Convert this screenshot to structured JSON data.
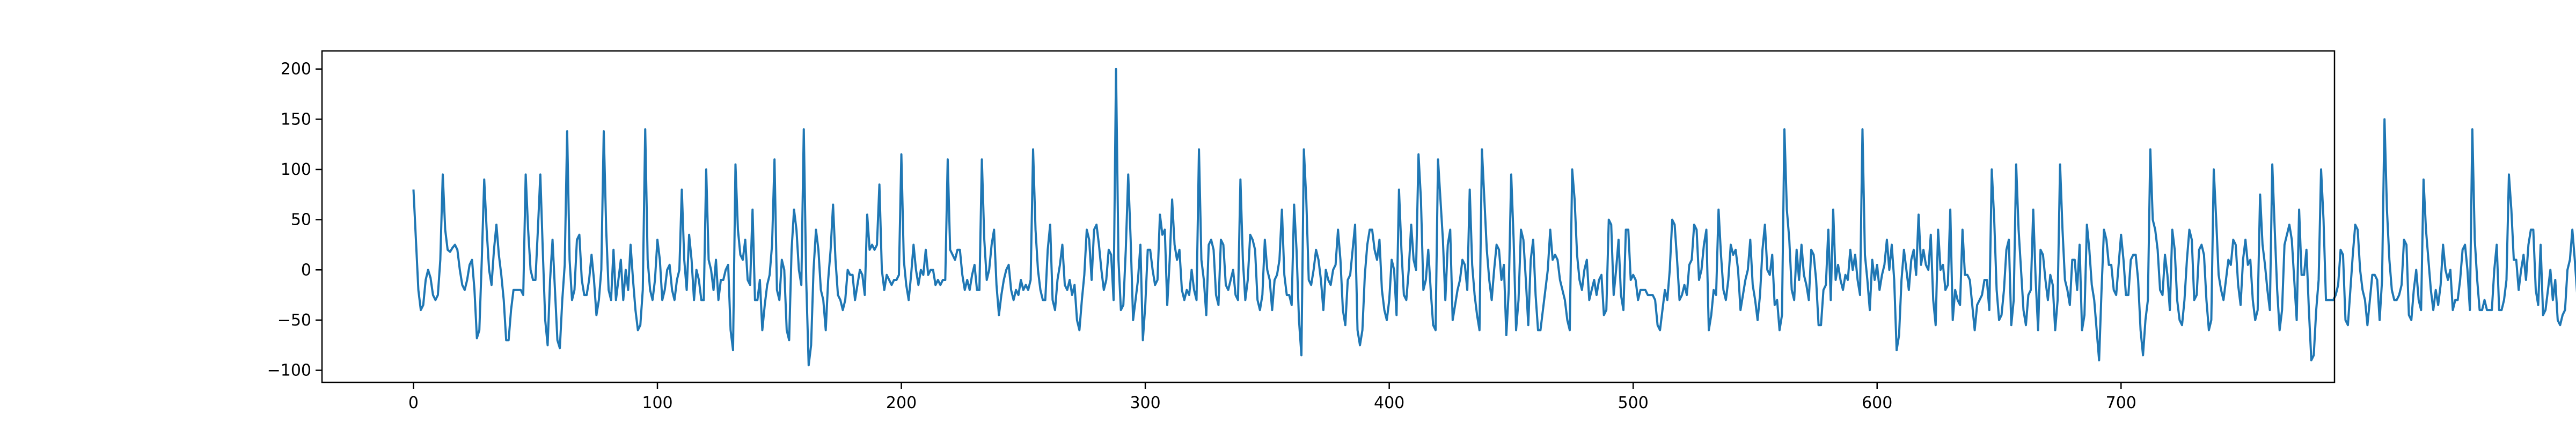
{
  "chart_data": {
    "type": "line",
    "title": "",
    "xlabel": "",
    "ylabel": "",
    "xlim": [
      -37.5,
      787.5
    ],
    "ylim": [
      -112,
      218
    ],
    "x_ticks": [
      0,
      100,
      200,
      300,
      400,
      500,
      600,
      700
    ],
    "x_tick_labels": [
      "0",
      "100",
      "200",
      "300",
      "400",
      "500",
      "600",
      "700"
    ],
    "y_ticks": [
      -100,
      -50,
      0,
      50,
      100,
      150,
      200
    ],
    "y_tick_labels": [
      "−100",
      "−50",
      "0",
      "50",
      "100",
      "150",
      "200"
    ],
    "grid": false,
    "legend": "none",
    "line_color": "#1f77b4",
    "series": [
      {
        "x_start": 0,
        "x_step": 1,
        "values": [
          80,
          30,
          -20,
          -40,
          -35,
          -10,
          0,
          -8,
          -25,
          -30,
          -25,
          10,
          95,
          40,
          20,
          18,
          22,
          25,
          20,
          0,
          -15,
          -20,
          -10,
          5,
          10,
          -20,
          -68,
          -60,
          10,
          90,
          40,
          0,
          -15,
          20,
          45,
          15,
          -5,
          -30,
          -70,
          -70,
          -40,
          -20,
          -20,
          -20,
          -20,
          -25,
          95,
          40,
          0,
          -10,
          -10,
          40,
          95,
          20,
          -50,
          -75,
          -10,
          30,
          -20,
          -70,
          -78,
          -30,
          5,
          138,
          10,
          -30,
          -20,
          30,
          35,
          -10,
          -25,
          -25,
          -10,
          15,
          -10,
          -45,
          -30,
          0,
          138,
          40,
          -20,
          -30,
          20,
          -30,
          -10,
          10,
          -30,
          0,
          -20,
          25,
          -10,
          -40,
          -60,
          -55,
          -20,
          140,
          10,
          -20,
          -30,
          -10,
          30,
          10,
          -30,
          -20,
          0,
          5,
          -20,
          -30,
          -10,
          0,
          80,
          10,
          -20,
          35,
          10,
          -30,
          0,
          -10,
          -30,
          -30,
          100,
          10,
          0,
          -20,
          10,
          -30,
          -10,
          -10,
          0,
          5,
          -60,
          -80,
          105,
          40,
          15,
          10,
          30,
          -10,
          -15,
          60,
          -30,
          -30,
          -10,
          -60,
          -35,
          -15,
          -5,
          25,
          110,
          -20,
          -30,
          10,
          0,
          -60,
          -70,
          20,
          60,
          40,
          0,
          -15,
          140,
          -10,
          -95,
          -75,
          0,
          40,
          20,
          -20,
          -30,
          -60,
          -10,
          20,
          65,
          10,
          -25,
          -30,
          -40,
          -30,
          0,
          -5,
          -5,
          -30,
          -15,
          0,
          -5,
          -25,
          55,
          20,
          25,
          20,
          25,
          85,
          0,
          -20,
          -5,
          -10,
          -15,
          -10,
          -10,
          -5,
          115,
          10,
          -15,
          -30,
          -5,
          25,
          0,
          -15,
          0,
          -5,
          20,
          -5,
          0,
          0,
          -15,
          -10,
          -15,
          -10,
          -10,
          110,
          20,
          15,
          10,
          20,
          20,
          -5,
          -20,
          -10,
          -20,
          -5,
          5,
          -20,
          -20,
          110,
          30,
          -10,
          0,
          25,
          40,
          -15,
          -45,
          -25,
          -10,
          0,
          5,
          -20,
          -30,
          -20,
          -25,
          -10,
          -20,
          -15,
          -20,
          -10,
          120,
          40,
          0,
          -20,
          -30,
          -30,
          20,
          45,
          -30,
          -40,
          -10,
          5,
          25,
          -15,
          -20,
          -10,
          -25,
          -15,
          -50,
          -60,
          -30,
          -5,
          40,
          30,
          -10,
          40,
          45,
          25,
          0,
          -20,
          -10,
          20,
          15,
          -30,
          200,
          10,
          -40,
          -35,
          20,
          95,
          30,
          -50,
          -30,
          -10,
          25,
          -70,
          -35,
          20,
          20,
          0,
          -15,
          -10,
          55,
          35,
          40,
          -35,
          10,
          70,
          25,
          10,
          20,
          -20,
          -30,
          -20,
          -25,
          0,
          -20,
          -30,
          120,
          10,
          -10,
          -45,
          25,
          30,
          20,
          -25,
          -35,
          30,
          25,
          -15,
          -20,
          -10,
          0,
          -25,
          -30,
          90,
          10,
          -30,
          -10,
          35,
          30,
          20,
          -30,
          -40,
          -25,
          30,
          0,
          -10,
          -40,
          -10,
          -5,
          10,
          60,
          -5,
          -25,
          -25,
          -35,
          65,
          20,
          -50,
          -85,
          120,
          70,
          -10,
          -15,
          0,
          20,
          10,
          -10,
          -40,
          0,
          -10,
          -15,
          0,
          5,
          40,
          10,
          -40,
          -55,
          -10,
          -5,
          20,
          45,
          -60,
          -75,
          -60,
          -5,
          25,
          40,
          40,
          20,
          10,
          30,
          -20,
          -40,
          -50,
          -30,
          10,
          0,
          -45,
          80,
          20,
          -25,
          -30,
          0,
          45,
          10,
          0,
          115,
          70,
          -20,
          -10,
          20,
          -20,
          -55,
          -60,
          110,
          70,
          30,
          -30,
          25,
          40,
          -50,
          -35,
          -20,
          -10,
          10,
          5,
          -20,
          80,
          5,
          -25,
          -45,
          -60,
          120,
          70,
          20,
          -10,
          -30,
          0,
          25,
          20,
          -10,
          5,
          -65,
          -20,
          95,
          30,
          -60,
          -30,
          40,
          30,
          -10,
          -55,
          10,
          30,
          -25,
          -60,
          -60,
          -40,
          -20,
          0,
          40,
          10,
          15,
          10,
          -10,
          -20,
          -30,
          -50,
          -60,
          100,
          70,
          15,
          -10,
          -20,
          0,
          10,
          -30,
          -20,
          -10,
          -25,
          -10,
          -5,
          -45,
          -40,
          50,
          45,
          -25,
          0,
          30,
          -25,
          -40,
          40,
          40,
          -10,
          -5,
          -10,
          -30,
          -20,
          -20,
          -20,
          -25,
          -25,
          -25,
          -30,
          -55,
          -60,
          -40,
          -20,
          -30,
          0,
          50,
          45,
          10,
          -30,
          -25,
          -15,
          -25,
          5,
          10,
          45,
          40,
          -10,
          0,
          25,
          40,
          -60,
          -45,
          -20,
          -25,
          60,
          15,
          -20,
          -30,
          -10,
          25,
          15,
          20,
          0,
          -40,
          -25,
          -10,
          0,
          30,
          -15,
          -30,
          -50,
          -25,
          20,
          45,
          0,
          -5,
          15,
          -35,
          -30,
          -60,
          -45,
          140,
          60,
          30,
          -20,
          -30,
          20,
          -10,
          25,
          -5,
          -15,
          -30,
          20,
          15,
          -10,
          -55,
          -55,
          -20,
          -15,
          40,
          -30,
          60,
          -10,
          5,
          -10,
          -20,
          -5,
          -10,
          20,
          0,
          15,
          -10,
          -25,
          140,
          15,
          -10,
          -40,
          10,
          -10,
          5,
          -20,
          -5,
          5,
          30,
          0,
          25,
          -10,
          -80,
          -65,
          -10,
          20,
          0,
          -20,
          10,
          20,
          -5,
          55,
          5,
          20,
          5,
          0,
          35,
          -30,
          -55,
          40,
          0,
          5,
          -20,
          -15,
          60,
          -50,
          -20,
          -30,
          -35,
          40,
          -5,
          -5,
          -10,
          -35,
          -60,
          -35,
          -30,
          -25,
          -10,
          -10,
          -40,
          100,
          50,
          -20,
          -50,
          -45,
          -20,
          20,
          30,
          -55,
          -30,
          105,
          40,
          0,
          -40,
          -55,
          -25,
          -20,
          60,
          -10,
          -60,
          20,
          15,
          -10,
          -30,
          -5,
          -15,
          -60,
          -30,
          105,
          40,
          -10,
          -20,
          -35,
          10,
          10,
          -20,
          25,
          -60,
          -45,
          45,
          20,
          -15,
          -30,
          -60,
          -90,
          -20,
          40,
          30,
          5,
          5,
          -20,
          -25,
          5,
          35,
          10,
          -25,
          -25,
          10,
          15,
          15,
          -10,
          -60,
          -85,
          -50,
          -30,
          120,
          50,
          40,
          20,
          -20,
          -25,
          15,
          -5,
          -40,
          40,
          20,
          -30,
          -50,
          -55,
          -30,
          10,
          40,
          30,
          -30,
          -25,
          20,
          25,
          15,
          -30,
          -60,
          -50,
          100,
          50,
          -5,
          -20,
          -30,
          -10,
          10,
          5,
          30,
          25,
          -15,
          -35,
          10,
          30,
          5,
          10,
          -30,
          -50,
          -40,
          75,
          25,
          5,
          -20,
          -40,
          105,
          40,
          -20,
          -60,
          -40,
          25,
          35,
          45,
          30,
          -10,
          -50,
          60,
          -5,
          -5,
          20,
          -40,
          -90,
          -85,
          -40,
          -10,
          100,
          50,
          -30,
          -30,
          -30,
          -30,
          -25,
          -15,
          20,
          15,
          -50,
          -55,
          -20,
          15,
          45,
          40,
          0,
          -20,
          -30,
          -55,
          -30,
          -5,
          -5,
          -10,
          -50,
          -10,
          150,
          60,
          10,
          -20,
          -30,
          -30,
          -25,
          -15,
          30,
          25,
          -45,
          -50,
          -20,
          0,
          -30,
          -40,
          90,
          40,
          10,
          -20,
          -40,
          -20,
          -35,
          -15,
          25,
          0,
          -10,
          0,
          -40,
          -30,
          -30,
          -10,
          20,
          25,
          0,
          -40,
          140,
          30,
          -10,
          -40,
          -40,
          -30,
          -40,
          -40,
          -40,
          0,
          25,
          -40,
          -40,
          -30,
          -10,
          95,
          60,
          10,
          10,
          -20,
          0,
          15,
          -10,
          25,
          40,
          40,
          -20,
          -35,
          25,
          -45,
          -40,
          -20,
          0,
          -30,
          -10,
          -50,
          -55,
          -45,
          -40,
          0,
          10,
          40,
          10,
          -25,
          -25,
          10,
          25,
          0,
          -10,
          -10,
          130,
          50,
          -40,
          -40,
          -20,
          -20,
          -30,
          -50,
          -35,
          -15,
          -20,
          -50,
          65,
          15,
          10,
          20,
          10,
          -10,
          -40,
          -55,
          -45,
          -20,
          5,
          5,
          -30,
          -50,
          -10,
          -5,
          10,
          -35,
          -40,
          -10,
          0,
          -10,
          15,
          -20,
          -30,
          -60,
          -90,
          -85,
          -30,
          15,
          150,
          60,
          0,
          -20,
          -20,
          0,
          20,
          -10,
          30,
          40,
          10,
          -20,
          -20,
          -20,
          40,
          -10,
          -20,
          -30,
          -25,
          -30,
          -50,
          -20,
          20,
          125,
          60,
          -10,
          -10,
          0,
          35
        ]
      }
    ]
  }
}
